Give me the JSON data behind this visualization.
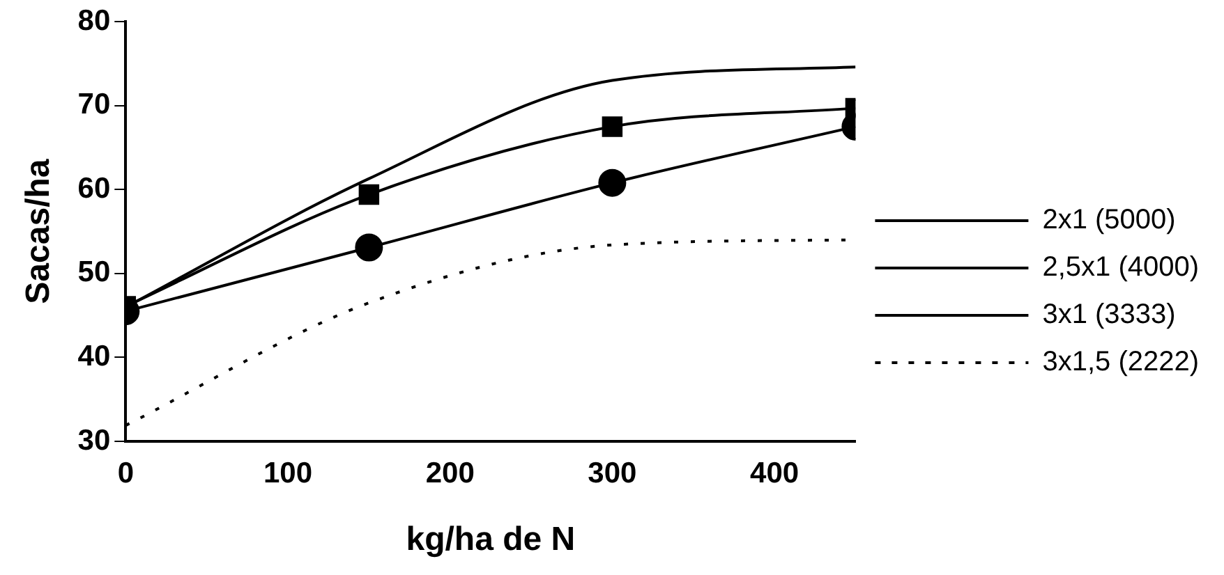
{
  "chart_data": {
    "type": "line",
    "xlabel": "kg/ha de N",
    "ylabel": "Sacas/ha",
    "x": [
      0,
      150,
      300,
      450
    ],
    "xlim": [
      0,
      450
    ],
    "xticks": [
      0,
      100,
      200,
      300,
      400
    ],
    "ylim": [
      30,
      80
    ],
    "yticks": [
      30,
      40,
      50,
      60,
      70,
      80
    ],
    "grid": false,
    "legend": "right",
    "series": [
      {
        "name": "2x1 (5000)",
        "color": "#000000",
        "marker": "none",
        "line_style": "solid",
        "values": [
          46,
          61.3,
          73,
          74.6
        ]
      },
      {
        "name": "2,5x1 (4000)",
        "color": "#000000",
        "marker": "square",
        "line_style": "solid",
        "values": [
          46.1,
          59.4,
          67.5,
          69.7
        ]
      },
      {
        "name": "3x1 (3333)",
        "color": "#000000",
        "marker": "circle",
        "line_style": "solid",
        "values": [
          45.5,
          53.1,
          60.8,
          67.5
        ]
      },
      {
        "name": "3x1,5 (2222)",
        "color": "#000000",
        "marker": "none",
        "line_style": "dotted",
        "values": [
          31.9,
          46.5,
          53.4,
          54
        ]
      }
    ]
  }
}
